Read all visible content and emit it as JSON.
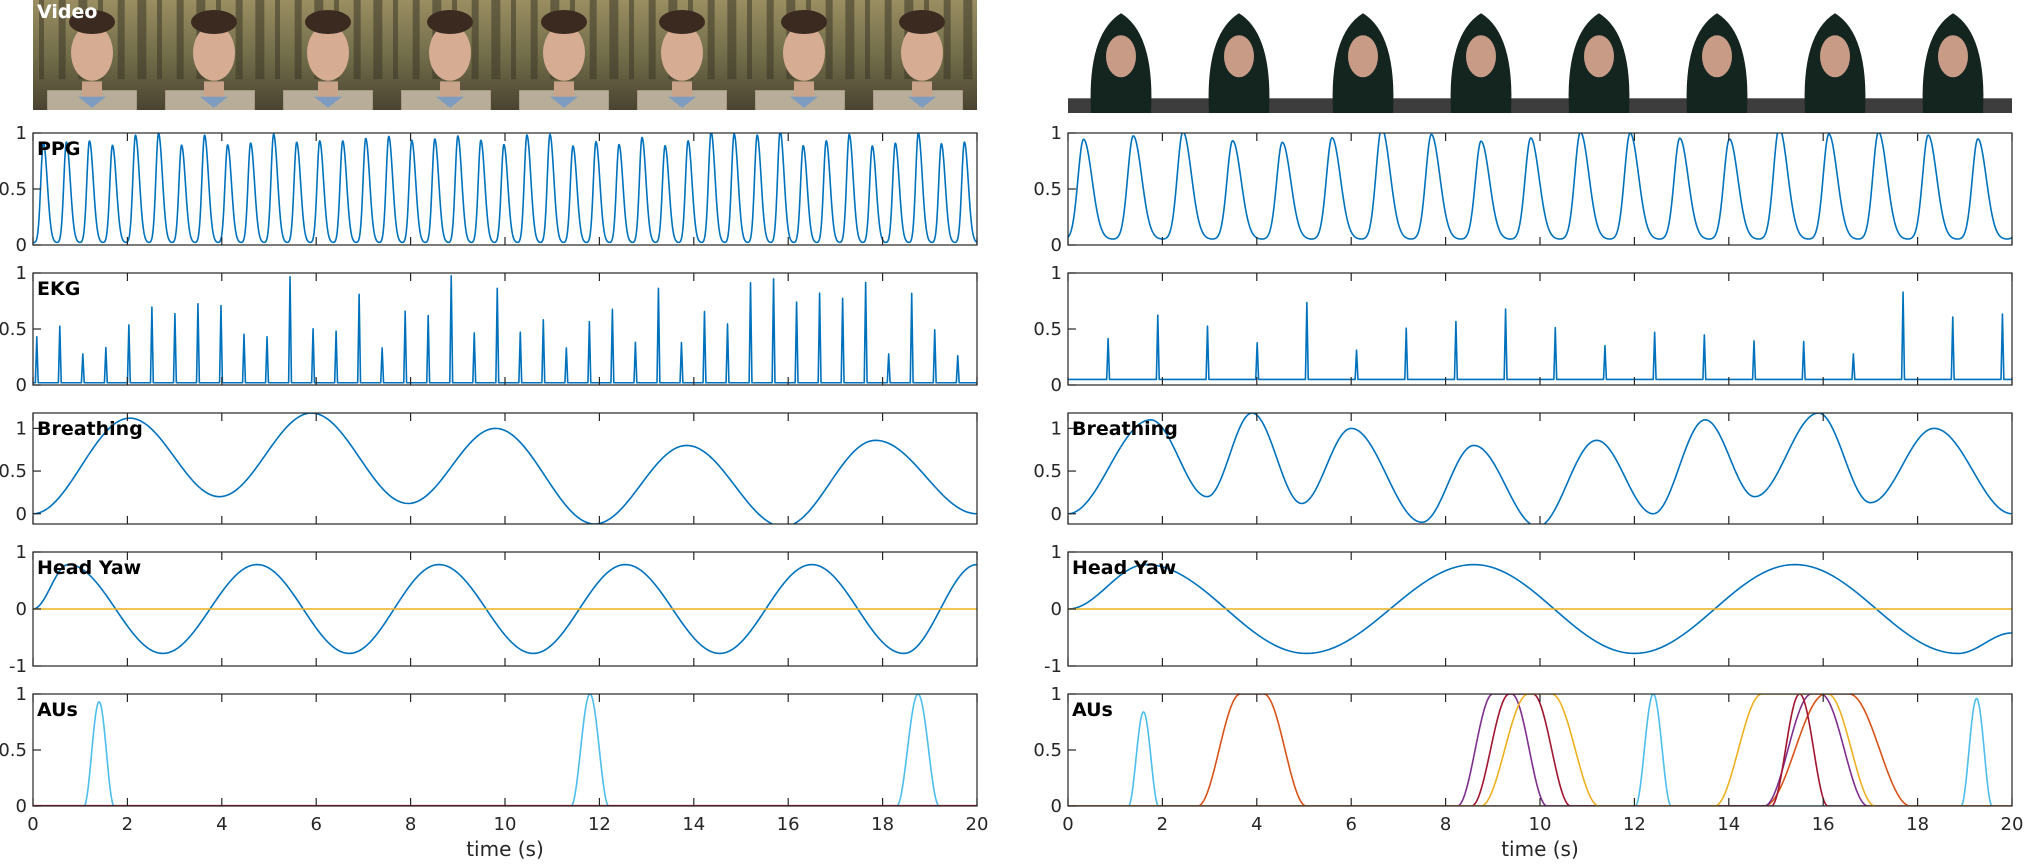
{
  "colors": {
    "ppg": "#0072BD",
    "ekg": "#0072BD",
    "breathing": "#0072BD",
    "head_yaw": "#0072BD",
    "head_yaw_baseline": "#EDB120",
    "au_palette": [
      "#4DBEEE",
      "#D95319",
      "#7E2F8E",
      "#A2142F",
      "#EDB120",
      "#0072BD"
    ]
  },
  "chart_data": [
    {
      "type": "image",
      "side": "left",
      "label": "Video",
      "frames": 8,
      "frame_subject": "young man in a forest",
      "head_yaw_per_frame": [
        "front",
        "turned",
        "front",
        "turned",
        "front",
        "front",
        "turned",
        "turned"
      ]
    },
    {
      "type": "image",
      "side": "right",
      "label": "",
      "frames": 8,
      "frame_subject": "woman in a dark headscarf",
      "head_yaw_per_frame": [
        "turned",
        "turned",
        "front",
        "front",
        "front",
        "front",
        "front",
        "front"
      ]
    },
    {
      "type": "line",
      "side": "left",
      "label": "PPG",
      "xlim": [
        0,
        20
      ],
      "ylim": [
        0,
        1
      ],
      "yticks": [
        0,
        0.5,
        1
      ],
      "yticklabels": [
        "0",
        "0.5",
        "1"
      ],
      "series": [
        {
          "kind": "ppg",
          "beats_per_second": 2.05,
          "first_peak": 0.22,
          "amplitude_range": [
            0.86,
            1.0
          ],
          "baseline": 0.02
        }
      ]
    },
    {
      "type": "line",
      "side": "left",
      "label": "EKG",
      "xlim": [
        0,
        20
      ],
      "ylim": [
        0,
        1
      ],
      "yticks": [
        0,
        0.5,
        1
      ],
      "yticklabels": [
        "0",
        "0.5",
        "1"
      ],
      "series": [
        {
          "kind": "ekg",
          "beats_per_second": 2.05,
          "first_peak": 0.08,
          "amplitude_range": [
            0.25,
            1.0
          ],
          "baseline": 0.02
        }
      ]
    },
    {
      "type": "line",
      "side": "left",
      "label": "Breathing",
      "xlim": [
        0,
        20
      ],
      "ylim": [
        -0.12,
        1.18
      ],
      "yticks": [
        0,
        0.5,
        1
      ],
      "yticklabels": [
        "0",
        "0.5",
        "1"
      ],
      "series": [
        {
          "kind": "extrema",
          "points": [
            [
              0,
              0.0
            ],
            [
              2.05,
              1.12
            ],
            [
              3.95,
              0.2
            ],
            [
              5.9,
              1.18
            ],
            [
              7.95,
              0.12
            ],
            [
              9.8,
              1.0
            ],
            [
              11.9,
              -0.12
            ],
            [
              13.85,
              0.8
            ],
            [
              15.9,
              -0.15
            ],
            [
              17.85,
              0.86
            ],
            [
              20,
              0.0
            ]
          ]
        }
      ]
    },
    {
      "type": "line",
      "side": "left",
      "label": "Head Yaw",
      "xlim": [
        0,
        20
      ],
      "ylim": [
        -1,
        1
      ],
      "yticks": [
        -1,
        0,
        1
      ],
      "yticklabels": [
        "-1",
        "0",
        "1"
      ],
      "series": [
        {
          "kind": "extrema",
          "points": [
            [
              0,
              0.0
            ],
            [
              0.75,
              0.78
            ],
            [
              2.75,
              -0.78
            ],
            [
              4.75,
              0.78
            ],
            [
              6.7,
              -0.78
            ],
            [
              8.6,
              0.78
            ],
            [
              10.6,
              -0.78
            ],
            [
              12.55,
              0.78
            ],
            [
              14.55,
              -0.78
            ],
            [
              16.5,
              0.78
            ],
            [
              18.45,
              -0.78
            ],
            [
              20,
              0.78
            ]
          ]
        },
        {
          "kind": "constant",
          "value": 0,
          "color_key": "head_yaw_baseline"
        }
      ]
    },
    {
      "type": "line",
      "side": "left",
      "label": "AUs",
      "xlim": [
        0,
        20
      ],
      "ylim": [
        0,
        1
      ],
      "yticks": [
        0,
        0.5,
        1
      ],
      "yticklabels": [
        "0",
        "0.5",
        "1"
      ],
      "xticks": [
        0,
        2,
        4,
        6,
        8,
        10,
        12,
        14,
        16,
        18,
        20
      ],
      "xlabel": "time (s)",
      "series": [
        {
          "kind": "bumps",
          "color": "#4DBEEE",
          "bumps": [
            [
              1.4,
              0.93,
              0.32
            ],
            [
              11.8,
              1.0,
              0.4
            ],
            [
              18.75,
              1.0,
              0.45
            ]
          ]
        },
        {
          "kind": "constant",
          "value": 0.003,
          "color": "#A2142F"
        }
      ]
    },
    {
      "type": "line",
      "side": "right",
      "label": "",
      "xlim": [
        0,
        20
      ],
      "ylim": [
        0,
        1
      ],
      "yticks": [
        0,
        0.5,
        1
      ],
      "yticklabels": [
        "0",
        "0.5",
        "1"
      ],
      "series": [
        {
          "kind": "ppg",
          "beats_per_second": 0.95,
          "first_peak": 0.33,
          "amplitude_range": [
            0.86,
            1.0
          ],
          "baseline": 0.05
        }
      ]
    },
    {
      "type": "line",
      "side": "right",
      "label": "",
      "xlim": [
        0,
        20
      ],
      "ylim": [
        0,
        1
      ],
      "yticks": [
        0,
        0.5,
        1
      ],
      "yticklabels": [
        "0",
        "0.5",
        "1"
      ],
      "series": [
        {
          "kind": "ekg",
          "beats_per_second": 0.95,
          "first_peak": 0.85,
          "amplitude_range": [
            0.25,
            0.93
          ],
          "baseline": 0.05
        }
      ]
    },
    {
      "type": "line",
      "side": "right",
      "label": "Breathing",
      "xlim": [
        0,
        20
      ],
      "ylim": [
        -0.12,
        1.18
      ],
      "yticks": [
        0,
        0.5,
        1
      ],
      "yticklabels": [
        "0",
        "0.5",
        "1"
      ],
      "series": [
        {
          "kind": "extrema",
          "points": [
            [
              0,
              0.0
            ],
            [
              1.75,
              1.1
            ],
            [
              3.9,
              1.18
            ],
            [
              2.95,
              0.2
            ],
            [
              4.95,
              0.12
            ],
            [
              6.0,
              1.0
            ],
            [
              7.5,
              -0.1
            ],
            [
              8.6,
              0.8
            ],
            [
              9.95,
              -0.15
            ],
            [
              11.2,
              0.86
            ],
            [
              12.4,
              0.0
            ],
            [
              13.5,
              1.1
            ],
            [
              14.55,
              0.2
            ],
            [
              15.9,
              1.18
            ],
            [
              17.0,
              0.13
            ],
            [
              18.35,
              1.0
            ],
            [
              20,
              0.0
            ]
          ],
          "sorted": false
        }
      ]
    },
    {
      "type": "line",
      "side": "right",
      "label": "Head Yaw",
      "xlim": [
        0,
        20
      ],
      "ylim": [
        -1,
        1
      ],
      "yticks": [
        -1,
        0,
        1
      ],
      "yticklabels": [
        "-1",
        "0",
        "1"
      ],
      "series": [
        {
          "kind": "extrema",
          "points": [
            [
              0,
              0.0
            ],
            [
              1.65,
              0.78
            ],
            [
              5.05,
              -0.78
            ],
            [
              8.6,
              0.78
            ],
            [
              12.0,
              -0.78
            ],
            [
              15.4,
              0.78
            ],
            [
              18.85,
              -0.78
            ],
            [
              20,
              -0.42
            ]
          ]
        },
        {
          "kind": "constant",
          "value": 0,
          "color_key": "head_yaw_baseline"
        }
      ]
    },
    {
      "type": "line",
      "side": "right",
      "label": "AUs",
      "xlim": [
        0,
        20
      ],
      "ylim": [
        0,
        1
      ],
      "yticks": [
        0,
        0.5,
        1
      ],
      "yticklabels": [
        "0",
        "0.5",
        "1"
      ],
      "xticks": [
        0,
        2,
        4,
        6,
        8,
        10,
        12,
        14,
        16,
        18,
        20
      ],
      "xlabel": "time (s)",
      "series": [
        {
          "kind": "plateaus",
          "color": "#4DBEEE",
          "plateaus": [
            [
              1.6,
              0.84,
              0.0,
              0.32
            ],
            [
              12.4,
              1.0,
              0.0,
              0.38
            ],
            [
              19.25,
              0.96,
              0.0,
              0.33
            ]
          ]
        },
        {
          "kind": "plateaus",
          "color": "#D95319",
          "plateaus": [
            [
              3.9,
              1.0,
              0.5,
              0.9
            ],
            [
              16.3,
              1.0,
              0.5,
              1.3
            ]
          ]
        },
        {
          "kind": "plateaus",
          "color": "#7E2F8E",
          "plateaus": [
            [
              9.2,
              1.0,
              0.4,
              0.75
            ],
            [
              15.85,
              1.0,
              0.2,
              1.0
            ]
          ]
        },
        {
          "kind": "plateaus",
          "color": "#A2142F",
          "plateaus": [
            [
              9.6,
              1.0,
              0.5,
              0.8
            ],
            [
              15.5,
              1.0,
              0.0,
              0.6
            ]
          ]
        },
        {
          "kind": "plateaus",
          "color": "#EDB120",
          "plateaus": [
            [
              10.0,
              1.0,
              0.5,
              1.0
            ],
            [
              15.4,
              1.0,
              1.4,
              1.0
            ]
          ]
        }
      ]
    }
  ]
}
